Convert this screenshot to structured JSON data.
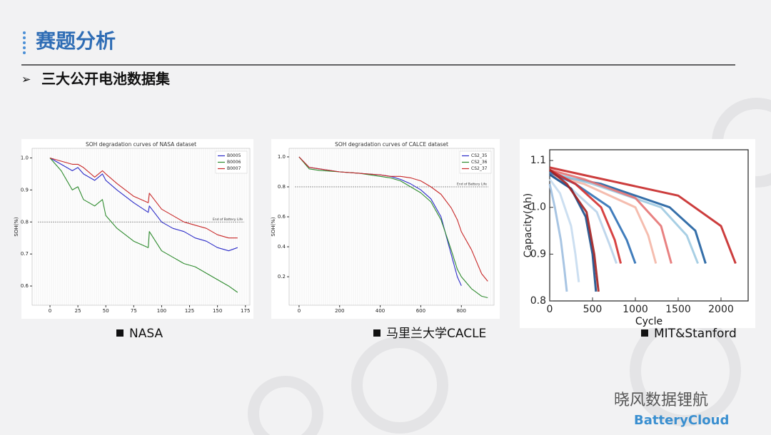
{
  "header": {
    "title": "赛题分析",
    "subtitle": "三大公开电池数据集"
  },
  "captions": [
    "NASA",
    "马里兰大学CACLE",
    "MIT&Stanford"
  ],
  "watermark": {
    "account": "晓风数据锂航",
    "brand": "BatteryCloud"
  },
  "chart_data": [
    {
      "type": "line",
      "title": "SOH degradation curves of NASA dataset",
      "y_label": "SOH(%)",
      "legend": "upper right",
      "reference_line": {
        "value": 0.8,
        "label": "End of Battery Life"
      },
      "x": [
        0,
        10,
        20,
        25,
        30,
        40,
        47,
        50,
        60,
        75,
        88,
        89,
        100,
        110,
        120,
        130,
        140,
        150,
        160,
        168
      ],
      "series": [
        {
          "name": "B0005",
          "color": "#2b2bc8",
          "values": [
            1.0,
            0.98,
            0.96,
            0.97,
            0.95,
            0.93,
            0.95,
            0.93,
            0.9,
            0.86,
            0.83,
            0.85,
            0.8,
            0.78,
            0.77,
            0.75,
            0.74,
            0.72,
            0.71,
            0.72
          ]
        },
        {
          "name": "B0006",
          "color": "#2e8b2e",
          "values": [
            1.0,
            0.96,
            0.9,
            0.91,
            0.87,
            0.85,
            0.87,
            0.82,
            0.78,
            0.74,
            0.72,
            0.77,
            0.71,
            0.69,
            0.67,
            0.66,
            0.64,
            0.62,
            0.6,
            0.58
          ]
        },
        {
          "name": "B0007",
          "color": "#c82828",
          "values": [
            1.0,
            0.99,
            0.98,
            0.98,
            0.97,
            0.94,
            0.96,
            0.95,
            0.92,
            0.88,
            0.86,
            0.89,
            0.84,
            0.82,
            0.8,
            0.79,
            0.78,
            0.76,
            0.75,
            0.75
          ]
        }
      ],
      "xlim": [
        -16,
        179
      ],
      "xticks": [
        0,
        25,
        50,
        75,
        100,
        125,
        150,
        175
      ],
      "ylim": [
        0.54,
        1.03
      ],
      "yticks": [
        0.6,
        0.7,
        0.8,
        0.9,
        {
          "value": 1,
          "label": "1.0"
        }
      ]
    },
    {
      "type": "line",
      "title": "SOH degradation curves of CALCE dataset",
      "y_label": "SOH(%)",
      "legend": "upper right",
      "reference_line": {
        "value": 0.8,
        "label": "End of Battery Life"
      },
      "x": [
        0,
        50,
        100,
        200,
        300,
        400,
        450,
        500,
        550,
        600,
        650,
        700,
        750,
        780,
        800,
        850,
        900,
        930
      ],
      "series": [
        {
          "name": "CS2_35",
          "color": "#2b2bc8",
          "values": [
            1.0,
            0.93,
            0.92,
            0.9,
            0.89,
            0.88,
            0.87,
            0.85,
            0.82,
            0.78,
            0.72,
            0.6,
            0.35,
            0.2,
            0.14,
            null,
            null,
            null
          ]
        },
        {
          "name": "CS2_36",
          "color": "#2e8b2e",
          "values": [
            1.0,
            0.92,
            0.91,
            0.9,
            0.89,
            0.87,
            0.86,
            0.84,
            0.8,
            0.76,
            0.7,
            0.58,
            0.38,
            0.25,
            0.2,
            0.12,
            0.07,
            0.06
          ]
        },
        {
          "name": "CS2_37",
          "color": "#c82828",
          "values": [
            1.0,
            0.93,
            0.92,
            0.9,
            0.89,
            0.88,
            0.87,
            0.87,
            0.86,
            0.84,
            0.8,
            0.75,
            0.66,
            0.58,
            0.5,
            0.38,
            0.22,
            0.17
          ]
        }
      ],
      "xlim": [
        -49,
        961
      ],
      "xticks": [
        0,
        200,
        400,
        600,
        800
      ],
      "ylim": [
        0.01,
        1.057
      ],
      "yticks": [
        0.2,
        0.4,
        0.6,
        0.8,
        {
          "value": 1,
          "label": "1.0"
        }
      ]
    },
    {
      "type": "line",
      "x_label": "Cycle",
      "y_label": "Capacity(Ah)",
      "series": [
        {
          "color": "#c62828",
          "x": [
            0,
            500,
            1500,
            2000,
            2170
          ],
          "values": [
            1.085,
            1.065,
            1.025,
            0.96,
            0.88
          ]
        },
        {
          "color": "#1f5fa0",
          "x": [
            0,
            600,
            1400,
            1700,
            1820
          ],
          "values": [
            1.07,
            1.05,
            1.0,
            0.95,
            0.88
          ]
        },
        {
          "color": "#9ecae1",
          "x": [
            0,
            500,
            1300,
            1600,
            1730
          ],
          "values": [
            1.075,
            1.05,
            1.0,
            0.94,
            0.88
          ]
        },
        {
          "color": "#e57373",
          "x": [
            0,
            400,
            1000,
            1300,
            1420
          ],
          "values": [
            1.08,
            1.06,
            1.02,
            0.96,
            0.88
          ]
        },
        {
          "color": "#f4b6a6",
          "x": [
            0,
            400,
            1000,
            1150,
            1240
          ],
          "values": [
            1.07,
            1.05,
            1.0,
            0.94,
            0.88
          ]
        },
        {
          "color": "#2c6fb5",
          "x": [
            0,
            300,
            700,
            900,
            1000
          ],
          "values": [
            1.075,
            1.05,
            1.0,
            0.93,
            0.88
          ]
        },
        {
          "color": "#d32f2f",
          "x": [
            0,
            300,
            600,
            760,
            830
          ],
          "values": [
            1.08,
            1.05,
            1.0,
            0.93,
            0.88
          ]
        },
        {
          "color": "#b9d3ea",
          "x": [
            0,
            250,
            550,
            700,
            780
          ],
          "values": [
            1.07,
            1.04,
            0.99,
            0.92,
            0.88
          ]
        },
        {
          "color": "#1a4e8a",
          "x": [
            0,
            250,
            420,
            500,
            540
          ],
          "values": [
            1.07,
            1.04,
            0.98,
            0.9,
            0.82
          ]
        },
        {
          "color": "#a32020",
          "x": [
            0,
            200,
            430,
            520,
            570
          ],
          "values": [
            1.08,
            1.05,
            0.99,
            0.9,
            0.82
          ]
        },
        {
          "color": "#c6dbef",
          "x": [
            0,
            120,
            250,
            300,
            340
          ],
          "values": [
            1.06,
            1.03,
            0.96,
            0.9,
            0.84
          ]
        },
        {
          "color": "#9ebfe0",
          "x": [
            0,
            60,
            130,
            170,
            200
          ],
          "values": [
            1.05,
            1.0,
            0.93,
            0.87,
            0.82
          ]
        }
      ],
      "xlim": [
        0,
        2317
      ],
      "xticks": [
        0,
        500,
        1000,
        1500,
        2000
      ],
      "ylim": [
        0.8,
        1.123
      ],
      "yticks": [
        0.8,
        0.9,
        {
          "value": 1,
          "label": "1.0"
        },
        1.1
      ]
    }
  ]
}
